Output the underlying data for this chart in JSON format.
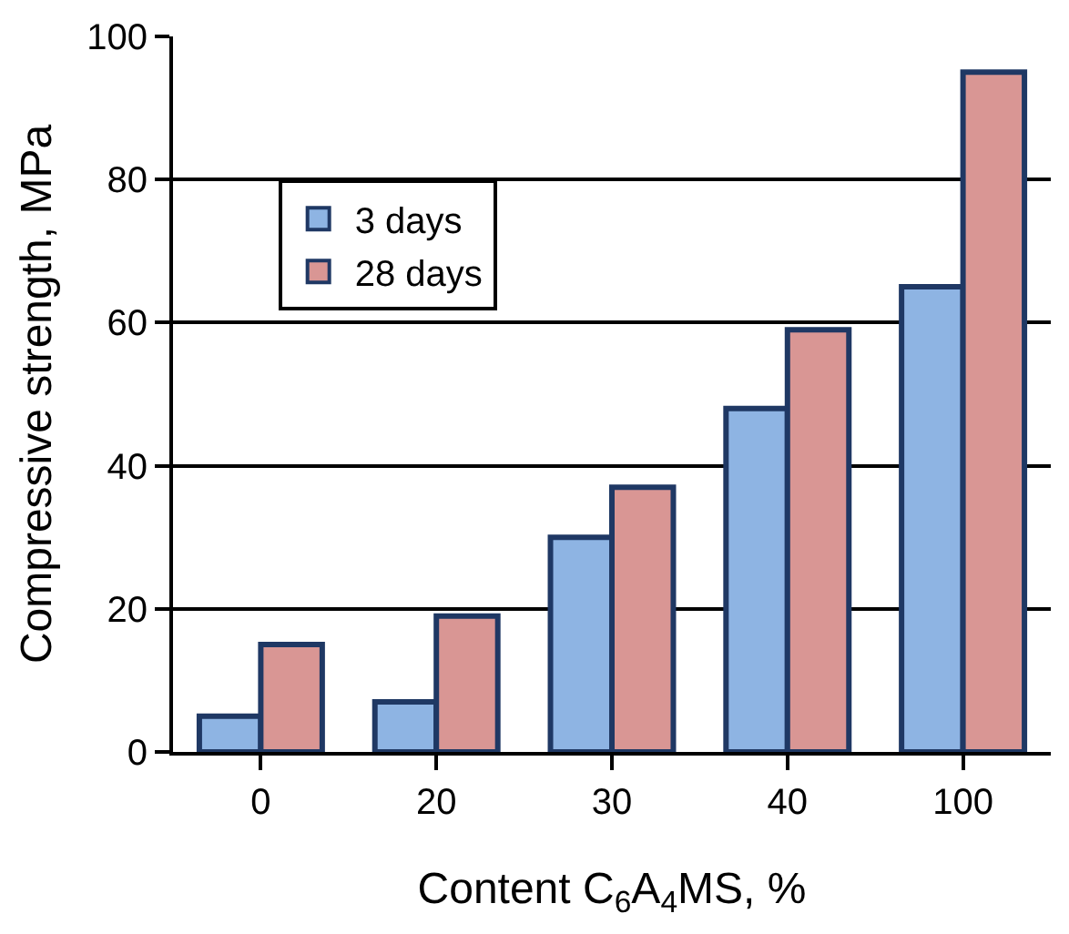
{
  "chart_data": {
    "type": "bar",
    "xlabel": "Content C$_{6}$A$_{4}$MS, %",
    "ylabel": "Compressive strength, MPa",
    "categories": [
      "0",
      "20",
      "30",
      "40",
      "100"
    ],
    "series": [
      {
        "name": "3 days",
        "color": "#8eb4e3",
        "values": [
          5,
          7,
          30,
          48,
          65
        ]
      },
      {
        "name": "28 days",
        "color": "#d99694",
        "values": [
          15,
          19,
          37,
          59,
          95
        ]
      }
    ],
    "ylim": [
      0,
      100
    ],
    "yticks": [
      0,
      20,
      40,
      60,
      80,
      100
    ],
    "grid": "y",
    "legend": "top left"
  }
}
